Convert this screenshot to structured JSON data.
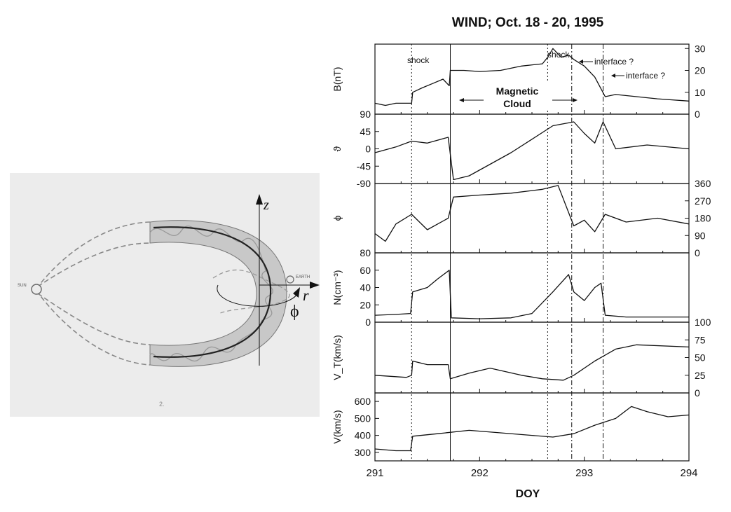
{
  "diagram": {
    "sun_label": "SUN",
    "earth_label": "EARTH",
    "axis_z": "z",
    "axis_r": "r",
    "axis_phi": "ϕ",
    "page_number": "2."
  },
  "chart_data": {
    "type": "line",
    "title": "WIND; Oct. 18 - 20, 1995",
    "xlabel": "DOY",
    "xlim": [
      291,
      294
    ],
    "xticks": [
      "291",
      "292",
      "293",
      "294"
    ],
    "events": [
      {
        "x": 291.35,
        "style": "dotted"
      },
      {
        "x": 291.72,
        "style": "solid"
      },
      {
        "x": 292.65,
        "style": "dotted"
      },
      {
        "x": 292.88,
        "style": "dashdot"
      },
      {
        "x": 293.18,
        "style": "dashdot"
      }
    ],
    "annotations": [
      {
        "text": "shock"
      },
      {
        "text": "shock"
      },
      {
        "text": "interface ?"
      },
      {
        "text": "interface ?"
      },
      {
        "text": "Magnetic"
      },
      {
        "text": "Cloud"
      }
    ],
    "panels": [
      {
        "id": "B",
        "ylabel": "B(nT)",
        "tick_side": "right",
        "ylim": [
          0,
          32
        ],
        "yticks": [
          "0",
          "10",
          "20",
          "30"
        ],
        "x": [
          291.0,
          291.1,
          291.2,
          291.3,
          291.35,
          291.36,
          291.45,
          291.55,
          291.65,
          291.71,
          291.72,
          291.85,
          292.0,
          292.2,
          292.4,
          292.6,
          292.65,
          292.7,
          292.78,
          292.85,
          292.9,
          293.0,
          293.1,
          293.2,
          293.3,
          293.5,
          293.7,
          294.0
        ],
        "values": [
          5,
          4,
          5,
          5,
          5,
          10,
          12,
          14,
          16,
          13,
          20,
          20,
          19.5,
          20,
          22,
          23,
          26,
          30,
          26,
          27,
          25,
          22,
          17,
          8,
          9,
          8,
          7,
          6
        ]
      },
      {
        "id": "theta",
        "ylabel": "ϑ",
        "tick_side": "left",
        "ylim": [
          -90,
          90
        ],
        "yticks": [
          "-90",
          "-45",
          "0",
          "45",
          "90"
        ],
        "x": [
          291.0,
          291.2,
          291.35,
          291.5,
          291.7,
          291.75,
          291.9,
          292.1,
          292.3,
          292.5,
          292.7,
          292.9,
          293.0,
          293.1,
          293.18,
          293.3,
          293.6,
          294.0
        ],
        "values": [
          -10,
          5,
          20,
          15,
          30,
          -80,
          -70,
          -40,
          -10,
          25,
          60,
          70,
          40,
          15,
          70,
          0,
          10,
          0
        ]
      },
      {
        "id": "phi",
        "ylabel": "ϕ",
        "tick_side": "right",
        "ylim": [
          0,
          360
        ],
        "yticks": [
          "0",
          "90",
          "180",
          "270",
          "360"
        ],
        "x": [
          291.0,
          291.1,
          291.2,
          291.35,
          291.5,
          291.7,
          291.75,
          292.0,
          292.3,
          292.6,
          292.75,
          292.9,
          293.0,
          293.1,
          293.2,
          293.4,
          293.7,
          294.0
        ],
        "values": [
          100,
          60,
          150,
          200,
          120,
          180,
          290,
          300,
          310,
          330,
          350,
          140,
          170,
          110,
          200,
          160,
          180,
          150
        ]
      },
      {
        "id": "N",
        "ylabel": "N(cm⁻³)",
        "tick_side": "left",
        "ylim": [
          0,
          80
        ],
        "yticks": [
          "0",
          "20",
          "40",
          "60",
          "80"
        ],
        "x": [
          291.0,
          291.2,
          291.34,
          291.36,
          291.5,
          291.6,
          291.71,
          291.73,
          292.0,
          292.3,
          292.5,
          292.7,
          292.85,
          292.9,
          293.0,
          293.1,
          293.16,
          293.2,
          293.4,
          294.0
        ],
        "values": [
          8,
          9,
          10,
          35,
          40,
          50,
          60,
          5,
          4,
          5,
          10,
          35,
          55,
          35,
          25,
          40,
          45,
          8,
          6,
          6
        ]
      },
      {
        "id": "VT",
        "ylabel": "V_T(km/s)",
        "tick_side": "right",
        "ylim": [
          0,
          100
        ],
        "yticks": [
          "0",
          "25",
          "50",
          "75",
          "100"
        ],
        "x": [
          291.0,
          291.3,
          291.35,
          291.36,
          291.5,
          291.7,
          291.72,
          291.9,
          292.1,
          292.4,
          292.6,
          292.8,
          292.9,
          293.1,
          293.3,
          293.5,
          294.0
        ],
        "values": [
          25,
          22,
          25,
          45,
          40,
          40,
          20,
          28,
          35,
          25,
          20,
          18,
          25,
          45,
          62,
          68,
          65
        ]
      },
      {
        "id": "V",
        "ylabel": "V(km/s)",
        "tick_side": "left",
        "ylim": [
          250,
          650
        ],
        "yticks": [
          "300",
          "400",
          "500",
          "600"
        ],
        "x": [
          291.0,
          291.2,
          291.34,
          291.36,
          291.6,
          291.9,
          292.2,
          292.5,
          292.7,
          292.9,
          293.1,
          293.3,
          293.45,
          293.6,
          293.8,
          294.0
        ],
        "values": [
          320,
          310,
          310,
          395,
          410,
          430,
          415,
          400,
          390,
          410,
          460,
          500,
          570,
          540,
          510,
          520
        ]
      }
    ]
  }
}
